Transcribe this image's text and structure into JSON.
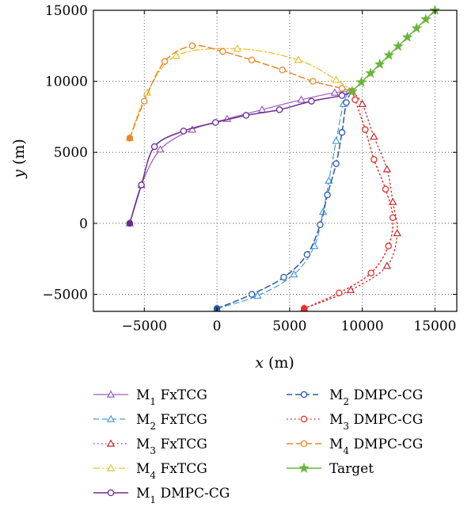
{
  "chart_data": {
    "type": "line",
    "title": "",
    "xlabel": "x (m)",
    "ylabel": "y (m)",
    "xlabel_var": "x",
    "xlabel_unit": " (m)",
    "ylabel_var": "y",
    "ylabel_unit": " (m)",
    "xlim": [
      -8500,
      16500
    ],
    "ylim": [
      -6200,
      15000
    ],
    "xticks": [
      -5000,
      0,
      5000,
      10000,
      15000
    ],
    "yticks": [
      -5000,
      0,
      5000,
      10000,
      15000
    ],
    "grid": true,
    "legend_position": "below",
    "series": [
      {
        "name": "M1 FxTCG",
        "sub": "1",
        "label": "FxTCG",
        "color": "#9b5fc0",
        "dash": "",
        "marker": "triangle",
        "width": 1.2,
        "x": [
          -6000,
          -5200,
          -3900,
          -1700,
          700,
          3100,
          5800,
          8100,
          9300
        ],
        "y": [
          0,
          2700,
          5200,
          6600,
          7350,
          8000,
          8700,
          9200,
          9300
        ]
      },
      {
        "name": "M2 FxTCG",
        "sub": "2",
        "label": "FxTCG",
        "color": "#4a9bd8",
        "dash": "7,4",
        "marker": "triangle",
        "width": 1.2,
        "x": [
          0,
          2800,
          5300,
          6700,
          7300,
          7700,
          8200,
          8700,
          9100
        ],
        "y": [
          -6000,
          -5100,
          -3600,
          -1600,
          800,
          3000,
          5800,
          8400,
          9300
        ]
      },
      {
        "name": "M3 FxTCG",
        "sub": "3",
        "label": "FxTCG",
        "color": "#c8282e",
        "dash": "1.5,3.5",
        "marker": "triangle",
        "width": 1.3,
        "x": [
          6000,
          9200,
          11700,
          12400,
          12100,
          11700,
          10800,
          10000,
          9300
        ],
        "y": [
          -6000,
          -4700,
          -3000,
          -700,
          1500,
          3800,
          6100,
          8400,
          9300
        ]
      },
      {
        "name": "M4 FxTCG",
        "sub": "4",
        "label": "FxTCG",
        "color": "#e8c430",
        "dash": "8,3,2,3",
        "marker": "triangle",
        "width": 1.3,
        "x": [
          -6000,
          -4800,
          -2800,
          1400,
          5600,
          8200,
          9300
        ],
        "y": [
          6000,
          9200,
          11800,
          12300,
          11500,
          10100,
          9300
        ]
      },
      {
        "name": "M1 DMPC-CG",
        "sub": "1",
        "label": "DMPC-CG",
        "color": "#6a2c90",
        "dash": "",
        "marker": "circle",
        "width": 1.5,
        "x": [
          -6000,
          -5200,
          -4300,
          -2300,
          -100,
          2000,
          4300,
          6500,
          8600,
          9300
        ],
        "y": [
          0,
          2700,
          5400,
          6500,
          7100,
          7600,
          8000,
          8600,
          9000,
          9300
        ]
      },
      {
        "name": "M2 DMPC-CG",
        "sub": "2",
        "label": "DMPC-CG",
        "color": "#2b5aa6",
        "dash": "7,4",
        "marker": "circle",
        "width": 1.5,
        "x": [
          0,
          2400,
          4600,
          6200,
          7100,
          7600,
          8200,
          8600,
          8900,
          9300
        ],
        "y": [
          -6000,
          -5000,
          -3800,
          -2200,
          -100,
          2000,
          4200,
          6400,
          8500,
          9300
        ]
      },
      {
        "name": "M3 DMPC-CG",
        "sub": "3",
        "label": "DMPC-CG",
        "color": "#e8302a",
        "dash": "1.5,3.5",
        "marker": "circle",
        "width": 1.5,
        "x": [
          6000,
          8400,
          10600,
          11800,
          12100,
          11600,
          10800,
          10200,
          9500,
          9300
        ],
        "y": [
          -6000,
          -4900,
          -3500,
          -1600,
          400,
          2400,
          4500,
          6600,
          8700,
          9300
        ]
      },
      {
        "name": "M4 DMPC-CG",
        "sub": "4",
        "label": "DMPC-CG",
        "color": "#e8882e",
        "dash": "8,4",
        "marker": "circle",
        "width": 1.5,
        "x": [
          -6000,
          -5000,
          -3600,
          -1700,
          400,
          2400,
          4500,
          6600,
          8600,
          9300
        ],
        "y": [
          6000,
          8600,
          11400,
          12500,
          12100,
          11500,
          10800,
          10000,
          9500,
          9300
        ]
      },
      {
        "name": "Target",
        "sub": "",
        "label": "Target",
        "color": "#6ab43c",
        "dash": "",
        "marker": "star",
        "width": 1.5,
        "x": [
          9300,
          9933,
          10567,
          11200,
          11833,
          12467,
          13100,
          13733,
          14367,
          15000
        ],
        "y": [
          9300,
          9933,
          10567,
          11200,
          11833,
          12467,
          13100,
          13733,
          14367,
          15000
        ]
      }
    ],
    "start_points": {
      "x": [
        -6000,
        0,
        6000,
        -6000
      ],
      "y": [
        0,
        -6000,
        -6000,
        6000
      ]
    }
  }
}
